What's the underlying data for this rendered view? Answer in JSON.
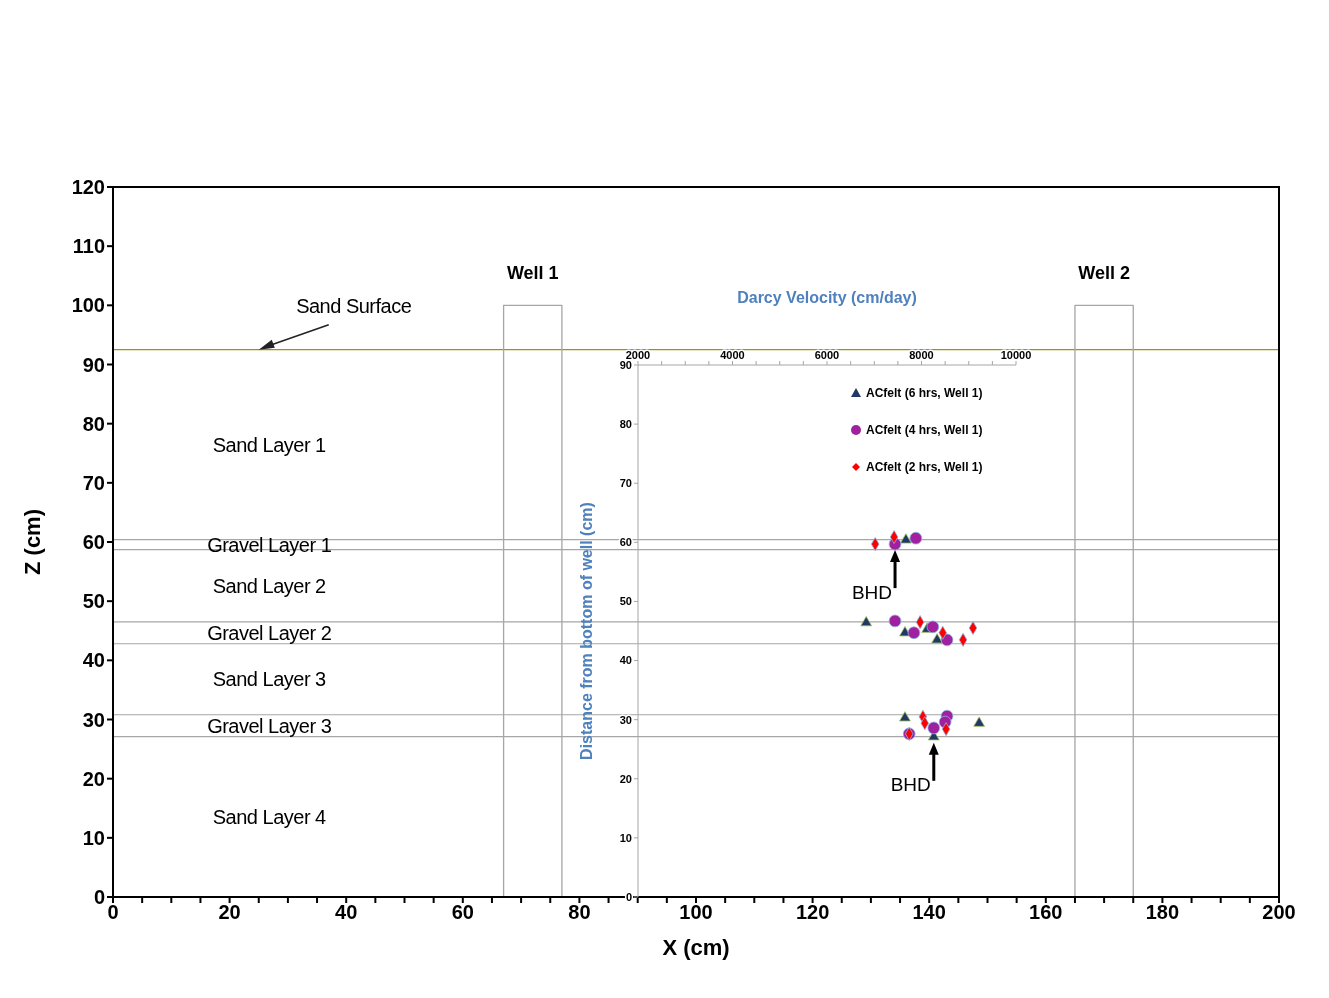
{
  "chart_data": [
    {
      "type": "line",
      "xlabel": "X (cm)",
      "ylabel": "Z (cm)",
      "xlim": [
        0,
        200
      ],
      "xticks": [
        0,
        {
          "value": 5,
          "label": null
        },
        {
          "value": 10,
          "label": null
        },
        {
          "value": 15,
          "label": null
        },
        20,
        {
          "value": 25,
          "label": null
        },
        {
          "value": 30,
          "label": null
        },
        {
          "value": 35,
          "label": null
        },
        40,
        {
          "value": 45,
          "label": null
        },
        {
          "value": 50,
          "label": null
        },
        {
          "value": 55,
          "label": null
        },
        60,
        {
          "value": 65,
          "label": null
        },
        {
          "value": 70,
          "label": null
        },
        {
          "value": 75,
          "label": null
        },
        80,
        {
          "value": 85,
          "label": null
        },
        {
          "value": 90,
          "label": null
        },
        {
          "value": 95,
          "label": null
        },
        100,
        {
          "value": 105,
          "label": null
        },
        {
          "value": 110,
          "label": null
        },
        {
          "value": 115,
          "label": null
        },
        120,
        {
          "value": 125,
          "label": null
        },
        {
          "value": 130,
          "label": null
        },
        {
          "value": 135,
          "label": null
        },
        140,
        {
          "value": 145,
          "label": null
        },
        {
          "value": 150,
          "label": null
        },
        {
          "value": 155,
          "label": null
        },
        160,
        {
          "value": 165,
          "label": null
        },
        {
          "value": 170,
          "label": null
        },
        {
          "value": 175,
          "label": null
        },
        180,
        {
          "value": 185,
          "label": null
        },
        {
          "value": 190,
          "label": null
        },
        {
          "value": 195,
          "label": null
        },
        200
      ],
      "ylim": [
        0,
        120
      ],
      "yticks": [
        0,
        10,
        20,
        30,
        40,
        50,
        60,
        70,
        80,
        90,
        100,
        110,
        120
      ],
      "legend": false,
      "marker": "none",
      "line_style": "solid",
      "series": [
        {
          "name": "Well 1",
          "color": "#a6a6a6",
          "x": [
            67,
            67,
            77,
            77
          ],
          "values": [
            0,
            100,
            100,
            0
          ]
        },
        {
          "name": "Well 2",
          "color": "#a6a6a6",
          "x": [
            165,
            165,
            175,
            175
          ],
          "values": [
            0,
            100,
            100,
            0
          ]
        }
      ],
      "ref_lines": [
        {
          "axis": "y",
          "value": 92.5,
          "label": "Sand Surface",
          "color": "#999900"
        },
        {
          "axis": "y",
          "value": 60.4,
          "color": "#a6a6a6"
        },
        {
          "axis": "y",
          "value": 58.7,
          "color": "#a6a6a6"
        },
        {
          "axis": "y",
          "value": 46.5,
          "color": "#a6a6a6"
        },
        {
          "axis": "y",
          "value": 42.8,
          "color": "#a6a6a6"
        },
        {
          "axis": "y",
          "value": 30.8,
          "color": "#a6a6a6"
        },
        {
          "axis": "y",
          "value": 27.1,
          "color": "#a6a6a6"
        }
      ],
      "annotations": [
        "Sand Layer 1",
        "Gravel Layer 1",
        "Sand Layer 2",
        "Gravel Layer 2",
        "Sand Layer 3",
        "Gravel Layer 3",
        "Sand Layer 4"
      ]
    },
    {
      "type": "scatter",
      "xlabel": "Darcy Velocity (cm/day)",
      "ylabel": "Distance from bottom of well (cm)",
      "xlim": [
        2000,
        10000
      ],
      "xticks": [
        2000,
        {
          "value": 2500,
          "label": null
        },
        {
          "value": 3000,
          "label": null
        },
        {
          "value": 3500,
          "label": null
        },
        4000,
        {
          "value": 4500,
          "label": null
        },
        {
          "value": 5000,
          "label": null
        },
        {
          "value": 5500,
          "label": null
        },
        6000,
        {
          "value": 6500,
          "label": null
        },
        {
          "value": 7000,
          "label": null
        },
        {
          "value": 7500,
          "label": null
        },
        8000,
        {
          "value": 8500,
          "label": null
        },
        {
          "value": 9000,
          "label": null
        },
        {
          "value": 9500,
          "label": null
        },
        10000
      ],
      "ylim": [
        0,
        90
      ],
      "yticks": [
        0,
        10,
        20,
        30,
        40,
        50,
        60,
        70,
        80,
        90
      ],
      "legend": "top right",
      "series": [
        {
          "name": "ACfelt (6 hrs, Well 1)",
          "color": "#1f3864",
          "marker": "triangle",
          "x": [
            7670,
            6830,
            8120,
            7650,
            8330,
            7650,
            8260,
            9220
          ],
          "values": [
            60.4,
            46.4,
            45.3,
            44.7,
            43.5,
            30.3,
            27.1,
            29.4
          ]
        },
        {
          "name": "ACfelt (4 hrs, Well 1)",
          "color": "#a020a0",
          "marker": "circle",
          "x": [
            7440,
            7880,
            7440,
            8240,
            7840,
            8540,
            8540,
            8500,
            8260,
            7740
          ],
          "values": [
            59.7,
            60.7,
            46.7,
            45.7,
            44.7,
            43.5,
            30.6,
            29.6,
            28.6,
            27.6
          ]
        },
        {
          "name": "ACfelt (2 hrs, Well 1)",
          "color": "#ff0000",
          "marker": "diamond",
          "x": [
            7020,
            7420,
            7970,
            8450,
            8880,
            9090,
            8030,
            8070,
            8520,
            7740
          ],
          "values": [
            59.7,
            60.9,
            46.5,
            44.7,
            43.5,
            45.5,
            30.5,
            29.4,
            28.4,
            27.6
          ]
        }
      ],
      "annotations": [
        {
          "text": "BHD",
          "x": 7440,
          "y": 59.7
        },
        {
          "text": "BHD",
          "x": 8260,
          "y": 27.1
        }
      ]
    }
  ]
}
